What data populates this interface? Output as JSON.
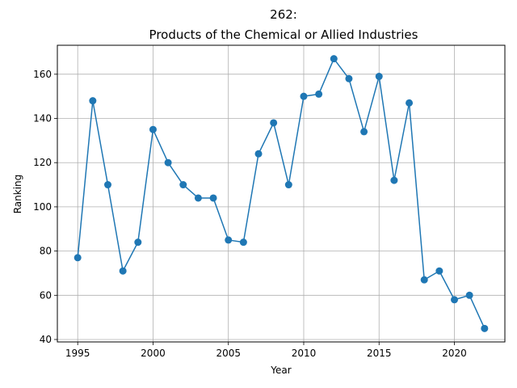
{
  "chart_data": {
    "type": "line",
    "title_line1": "262:",
    "title_line2": "Products of the Chemical or Allied Industries",
    "xlabel": "Year",
    "ylabel": "Ranking",
    "xlim": [
      1993.65,
      2023.35
    ],
    "ylim": [
      38.9,
      173.1
    ],
    "x_ticks": [
      1995,
      2000,
      2005,
      2010,
      2015,
      2020
    ],
    "y_ticks": [
      40,
      60,
      80,
      100,
      120,
      140,
      160
    ],
    "x_tick_labels": [
      "1995",
      "2000",
      "2005",
      "2010",
      "2015",
      "2020"
    ],
    "y_tick_labels": [
      "40",
      "60",
      "80",
      "100",
      "120",
      "140",
      "160"
    ],
    "grid": true,
    "series": [
      {
        "color": "#1f77b4",
        "x": [
          1995,
          1996,
          1997,
          1998,
          1999,
          2000,
          2001,
          2002,
          2003,
          2004,
          2005,
          2006,
          2007,
          2008,
          2009,
          2010,
          2011,
          2012,
          2013,
          2014,
          2015,
          2016,
          2017,
          2018,
          2019,
          2020,
          2021,
          2022
        ],
        "y": [
          77,
          148,
          110,
          71,
          84,
          135,
          120,
          110,
          104,
          104,
          85,
          84,
          124,
          138,
          110,
          150,
          151,
          167,
          158,
          134,
          159,
          112,
          147,
          67,
          71,
          58,
          60,
          45
        ]
      }
    ]
  }
}
